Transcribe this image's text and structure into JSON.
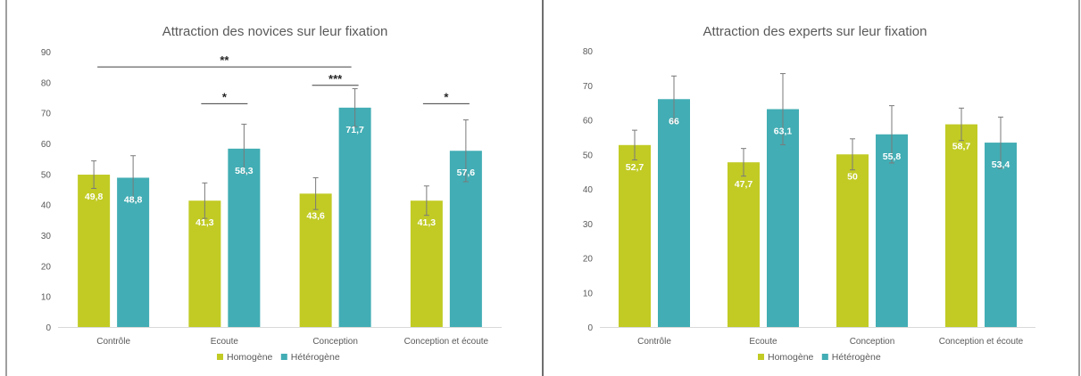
{
  "colors": {
    "homogene": "#c1cb24",
    "heterogene": "#42adb4",
    "axis": "#d9d9d9",
    "tick_text": "#595959",
    "title_text": "#595959",
    "error_bar": "#7a7a7a",
    "frame": "#3f3f3f"
  },
  "chart_data": [
    {
      "type": "bar",
      "title": "Attraction des novices sur leur fixation",
      "categories": [
        "Contrôle",
        "Ecoute",
        "Conception",
        "Conception et écoute"
      ],
      "series": [
        {
          "name": "Homogène",
          "values": [
            49.8,
            41.3,
            43.6,
            41.3
          ],
          "labels": [
            "49,8",
            "41,3",
            "43,6",
            "41,3"
          ],
          "error": [
            4.5,
            5.8,
            5.2,
            4.8
          ]
        },
        {
          "name": "Hétérogène",
          "values": [
            48.8,
            58.3,
            71.7,
            57.6
          ],
          "labels": [
            "48,8",
            "58,3",
            "71,7",
            "57,6"
          ],
          "error": [
            7.2,
            8.0,
            6.2,
            10.1
          ]
        }
      ],
      "ylim": [
        0,
        90
      ],
      "yticks": [
        "0",
        "10",
        "20",
        "30",
        "40",
        "50",
        "60",
        "70",
        "80",
        "90"
      ],
      "legend_position": "bottom",
      "grid": false,
      "significance": [
        {
          "label": "**",
          "from": "Contrôle",
          "to": "Conception",
          "level": 85
        },
        {
          "label": "*",
          "from": "Ecoute",
          "to": "Ecoute",
          "level": 73
        },
        {
          "label": "***",
          "from": "Conception",
          "to": "Conception",
          "level": 79
        },
        {
          "label": "*",
          "from": "Conception et écoute",
          "to": "Conception et écoute",
          "level": 73
        }
      ]
    },
    {
      "type": "bar",
      "title": "Attraction des experts sur leur fixation",
      "categories": [
        "Contrôle",
        "Ecoute",
        "Conception",
        "Conception et écoute"
      ],
      "series": [
        {
          "name": "Homogène",
          "values": [
            52.7,
            47.7,
            50,
            58.7
          ],
          "labels": [
            "52,7",
            "47,7",
            "50",
            "58,7"
          ],
          "error": [
            4.3,
            4.0,
            4.5,
            4.7
          ]
        },
        {
          "name": "Hétérogène",
          "values": [
            66,
            63.1,
            55.8,
            53.4
          ],
          "labels": [
            "66",
            "63,1",
            "55,8",
            "53,4"
          ],
          "error": [
            6.7,
            10.3,
            8.3,
            7.4
          ]
        }
      ],
      "ylim": [
        0,
        80
      ],
      "yticks": [
        "0",
        "10",
        "20",
        "30",
        "40",
        "50",
        "60",
        "70",
        "80"
      ],
      "legend_position": "bottom",
      "grid": false
    }
  ]
}
